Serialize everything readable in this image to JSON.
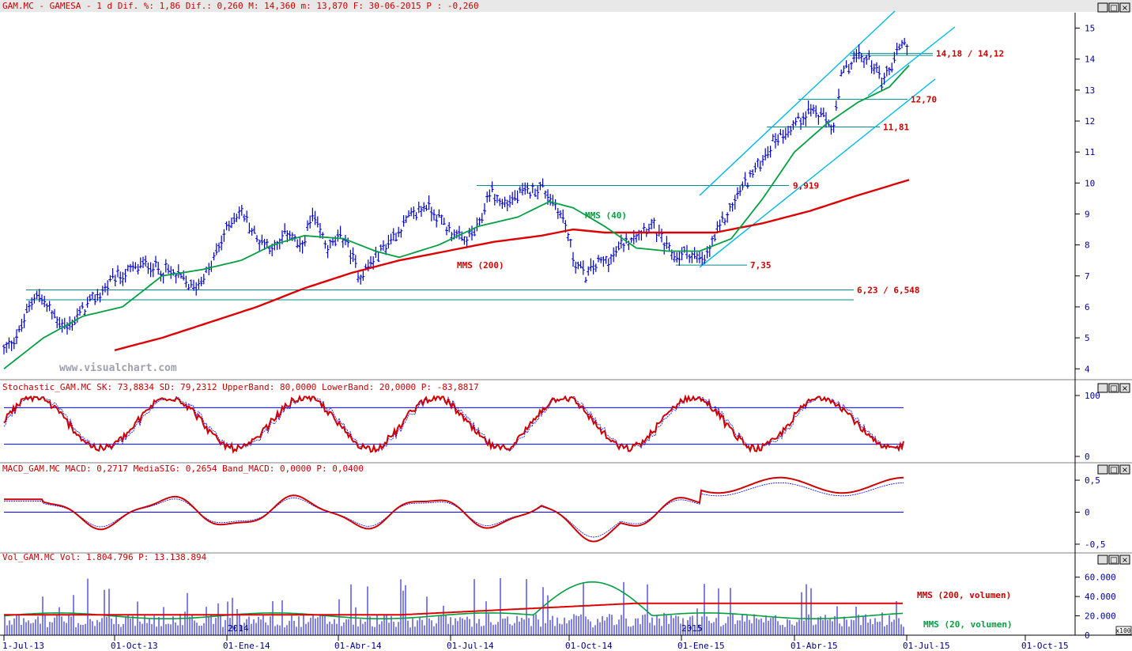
{
  "colors": {
    "price": "#0000cc",
    "mma200": "#dd0000",
    "mma40": "#00a040",
    "channel": "#00b8e6",
    "level": "#008b8b",
    "levelLabel": "#cc0000",
    "axis": "#0000aa",
    "stoch": "#cc0000",
    "macd": "#cc0000",
    "signal": "#0000ff",
    "volume": "#0000cc",
    "volMA20": "#00a040",
    "volMA200": "#dd0000",
    "header": "#cc0000",
    "headerFill": "#e8e8e8"
  },
  "panels": {
    "price": {
      "header": "GAM.MC - GAMESA -  1 d Dif. %: 1,86 Dif.: 0,260 M: 14,360 m: 13,870 F: 30-06-2015 P : -0,260",
      "watermark": "www.visualchart.com",
      "labels": {
        "mma40": "MMS (40)",
        "mma200": "MMS (200)",
        "l1418": "14,18 / 14,12",
        "l1270": "12,70",
        "l1181": "11,81",
        "l9919": "9,919",
        "l735": "7,35",
        "l623": "6,23 / 6,548"
      },
      "yticks": [
        "15",
        "14",
        "13",
        "12",
        "11",
        "10",
        "9",
        "8",
        "7",
        "6",
        "5",
        "4"
      ]
    },
    "stoch": {
      "header": "Stochastic_GAM.MC SK: 73,8834 SD: 79,2312 UpperBand: 80,0000 LowerBand: 20,0000 P: -83,8817",
      "yticks": [
        "100",
        "0"
      ]
    },
    "macd": {
      "header": "MACD_GAM.MC MACD: 0,2717 MediaSIG: 0,2654 Band_MACD: 0,0000 P: 0,0400",
      "yticks": [
        "0,5",
        "0",
        "-0,5"
      ]
    },
    "vol": {
      "header": "Vol_GAM.MC Vol: 1.804.796 P: 13.138.894",
      "labels": {
        "ma200": "MMS (200, volumen)",
        "ma20": "MMS (20, volumen)"
      },
      "yticks": [
        "60.000",
        "40.000",
        "20.000",
        "0"
      ],
      "unit": "x100",
      "yearMarks": [
        "2014",
        "2015"
      ]
    }
  },
  "xaxis": [
    "1-Jul-13",
    "01-Oct-13",
    "01-Ene-14",
    "01-Abr-14",
    "01-Jul-14",
    "01-Oct-14",
    "01-Ene-15",
    "01-Abr-15",
    "01-Jul-15",
    "01-Oct-15"
  ],
  "window_buttons": [
    "_",
    "□",
    "×"
  ],
  "chart_data": {
    "type": "line",
    "symbol": "GAM.MC",
    "price_path": [
      [
        0,
        4.6
      ],
      [
        0.02,
        5.2
      ],
      [
        0.04,
        6.5
      ],
      [
        0.06,
        5.8
      ],
      [
        0.08,
        5.3
      ],
      [
        0.1,
        5.9
      ],
      [
        0.14,
        6.9
      ],
      [
        0.18,
        7.4
      ],
      [
        0.22,
        7.0
      ],
      [
        0.24,
        6.6
      ],
      [
        0.26,
        7.2
      ],
      [
        0.285,
        8.7
      ],
      [
        0.3,
        9.1
      ],
      [
        0.32,
        8.2
      ],
      [
        0.345,
        7.9
      ],
      [
        0.36,
        8.5
      ],
      [
        0.375,
        7.8
      ],
      [
        0.39,
        8.9
      ],
      [
        0.41,
        7.9
      ],
      [
        0.43,
        8.3
      ],
      [
        0.45,
        7.0
      ],
      [
        0.47,
        7.6
      ],
      [
        0.49,
        8.2
      ],
      [
        0.51,
        8.8
      ],
      [
        0.535,
        9.3
      ],
      [
        0.56,
        8.6
      ],
      [
        0.58,
        8.1
      ],
      [
        0.6,
        8.5
      ],
      [
        0.615,
        9.8
      ],
      [
        0.63,
        9.3
      ],
      [
        0.66,
        9.7
      ],
      [
        0.68,
        9.9
      ],
      [
        0.7,
        9.2
      ],
      [
        0.71,
        8.7
      ],
      [
        0.72,
        7.6
      ],
      [
        0.735,
        7.0
      ],
      [
        0.75,
        7.4
      ],
      [
        0.77,
        7.6
      ],
      [
        0.785,
        8.1
      ],
      [
        0.8,
        8.4
      ],
      [
        0.82,
        8.7
      ],
      [
        0.835,
        8.0
      ],
      [
        0.85,
        7.6
      ],
      [
        0.865,
        7.8
      ],
      [
        0.885,
        7.4
      ],
      [
        0.9,
        8.3
      ],
      [
        0.915,
        9.0
      ],
      [
        0.935,
        9.9
      ],
      [
        0.955,
        10.6
      ],
      [
        0.975,
        11.4
      ],
      [
        1.0,
        11.9
      ],
      [
        1.02,
        12.4
      ],
      [
        1.05,
        11.8
      ],
      [
        1.06,
        13.5
      ],
      [
        1.08,
        14.1
      ],
      [
        1.1,
        13.9
      ],
      [
        1.11,
        13.3
      ],
      [
        1.125,
        13.9
      ],
      [
        1.135,
        14.6
      ],
      [
        1.145,
        14.36
      ]
    ],
    "ma200_path": [
      [
        0.14,
        4.6
      ],
      [
        0.2,
        5.0
      ],
      [
        0.26,
        5.5
      ],
      [
        0.32,
        6.0
      ],
      [
        0.38,
        6.6
      ],
      [
        0.44,
        7.1
      ],
      [
        0.5,
        7.5
      ],
      [
        0.56,
        7.8
      ],
      [
        0.62,
        8.1
      ],
      [
        0.68,
        8.3
      ],
      [
        0.72,
        8.5
      ],
      [
        0.76,
        8.4
      ],
      [
        0.82,
        8.4
      ],
      [
        0.9,
        8.4
      ],
      [
        0.96,
        8.7
      ],
      [
        1.02,
        9.1
      ],
      [
        1.08,
        9.6
      ],
      [
        1.145,
        10.1
      ]
    ],
    "ma40_path": [
      [
        0,
        4.0
      ],
      [
        0.05,
        5.0
      ],
      [
        0.1,
        5.7
      ],
      [
        0.15,
        6.0
      ],
      [
        0.2,
        7.0
      ],
      [
        0.25,
        7.2
      ],
      [
        0.3,
        7.5
      ],
      [
        0.34,
        8.0
      ],
      [
        0.38,
        8.3
      ],
      [
        0.43,
        8.2
      ],
      [
        0.47,
        7.8
      ],
      [
        0.5,
        7.6
      ],
      [
        0.55,
        8.0
      ],
      [
        0.6,
        8.6
      ],
      [
        0.65,
        8.9
      ],
      [
        0.69,
        9.4
      ],
      [
        0.72,
        9.2
      ],
      [
        0.76,
        8.6
      ],
      [
        0.8,
        7.9
      ],
      [
        0.84,
        7.8
      ],
      [
        0.88,
        7.8
      ],
      [
        0.92,
        8.2
      ],
      [
        0.96,
        9.5
      ],
      [
        1.0,
        11.0
      ],
      [
        1.04,
        11.9
      ],
      [
        1.08,
        12.6
      ],
      [
        1.12,
        13.1
      ],
      [
        1.145,
        13.8
      ]
    ],
    "levels": [
      14.18,
      14.12,
      12.7,
      11.81,
      9.919,
      7.35,
      6.548,
      6.23
    ],
    "price_ylim": [
      3.7,
      15.5
    ],
    "stoch_bands": [
      80,
      20
    ],
    "stoch_last": {
      "sk": 73.8834,
      "sd": 79.2312
    },
    "macd_last": {
      "macd": 0.2717,
      "signal": 0.2654
    },
    "volume_last": 1804796,
    "x_labels": [
      "1-Jul-13",
      "01-Oct-13",
      "01-Ene-14",
      "01-Abr-14",
      "01-Jul-14",
      "01-Oct-14",
      "01-Ene-15",
      "01-Abr-15",
      "01-Jul-15",
      "01-Oct-15"
    ]
  }
}
